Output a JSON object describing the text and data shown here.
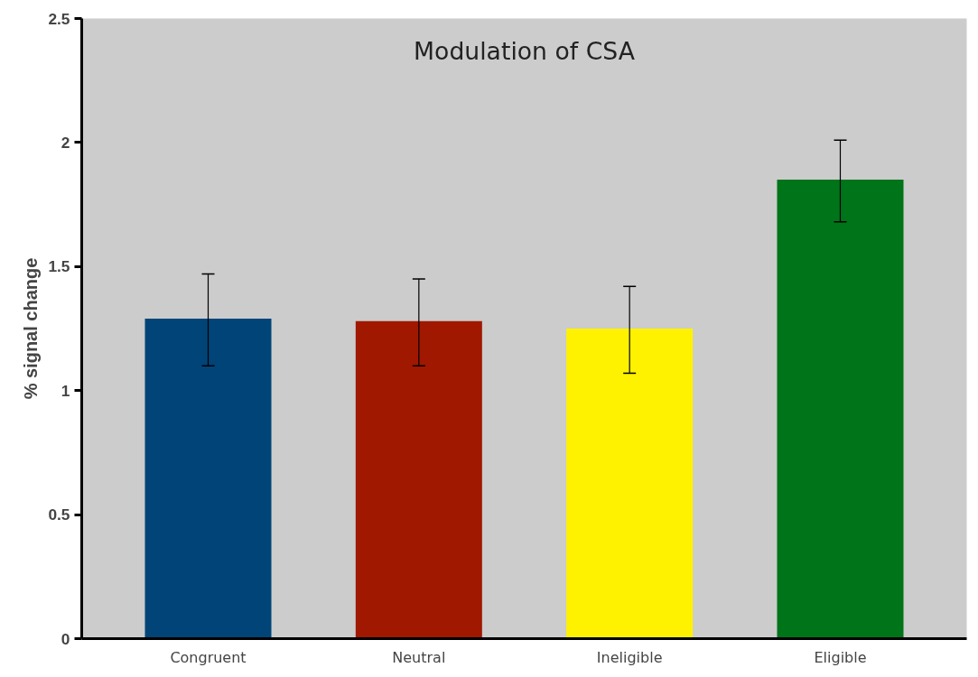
{
  "chart_data": {
    "type": "bar",
    "title": "Modulation of CSA",
    "ylabel": "% signal change",
    "categories": [
      "Congruent",
      "Neutral",
      "Ineligible",
      "Eligible"
    ],
    "values": [
      1.29,
      1.28,
      1.25,
      1.85
    ],
    "colors": [
      "#004478",
      "#a01800",
      "#fff200",
      "#007418"
    ],
    "errors": [
      [
        1.1,
        1.47
      ],
      [
        1.1,
        1.45
      ],
      [
        1.07,
        1.42
      ],
      [
        1.68,
        2.01
      ]
    ],
    "ylim": [
      0,
      2.5
    ],
    "yticks": [
      0,
      0.5,
      1,
      1.5,
      2,
      2.5
    ],
    "grid": false
  }
}
